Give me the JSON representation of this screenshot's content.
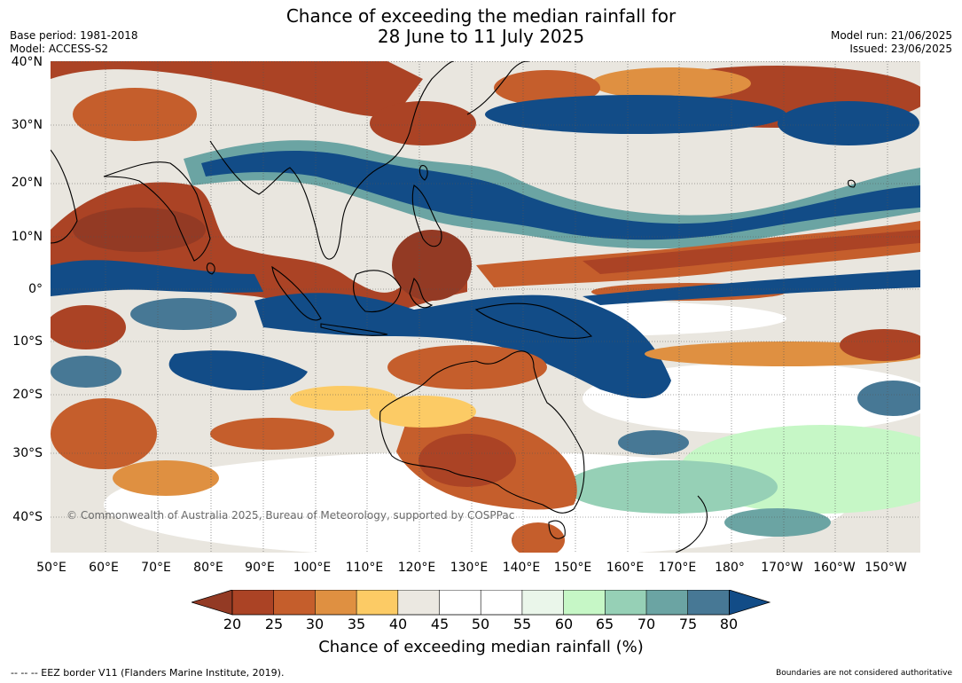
{
  "title": {
    "line1": "Chance of exceeding the median rainfall for",
    "line2": "28 June to 11 July 2025"
  },
  "meta": {
    "base_period": "Base period: 1981-2018",
    "model": "Model: ACCESS-S2",
    "model_run": "Model run: 21/06/2025",
    "issued": "Issued: 23/06/2025"
  },
  "lat_labels": [
    "40°N",
    "30°N",
    "20°N",
    "10°N",
    "0°",
    "10°S",
    "20°S",
    "30°S",
    "40°S"
  ],
  "lon_labels": [
    "50°E",
    "60°E",
    "70°E",
    "80°E",
    "90°E",
    "100°E",
    "110°E",
    "120°E",
    "130°E",
    "140°E",
    "150°E",
    "160°E",
    "170°E",
    "180°",
    "170°W",
    "160°W",
    "150°W"
  ],
  "copyright": "© Commonwealth of Australia 2025, Bureau of Meteorology, supported by COSPPac",
  "colorbar": {
    "ticks": [
      "20",
      "25",
      "30",
      "35",
      "40",
      "45",
      "50",
      "55",
      "60",
      "65",
      "70",
      "75",
      "80"
    ],
    "label": "Chance of exceeding median rainfall (%)",
    "colors": {
      "lt20": "#933a24",
      "20-25": "#ab4325",
      "25-30": "#c55e2c",
      "30-35": "#df9041",
      "35-40": "#fccb65",
      "40-45": "#ebe8e1",
      "45-50": "#ffffff",
      "50-55": "#ffffff",
      "55-60": "#eaf6ea",
      "60-65": "#c6f7c6",
      "65-70": "#96d0b6",
      "70-75": "#6ba4a3",
      "75-80": "#477895",
      "gt80": "#124c87"
    }
  },
  "footer": {
    "left": "--  --  -- EEZ border V11 (Flanders Marine Institute, 2019).",
    "right": "Boundaries are not considered authoritative"
  }
}
